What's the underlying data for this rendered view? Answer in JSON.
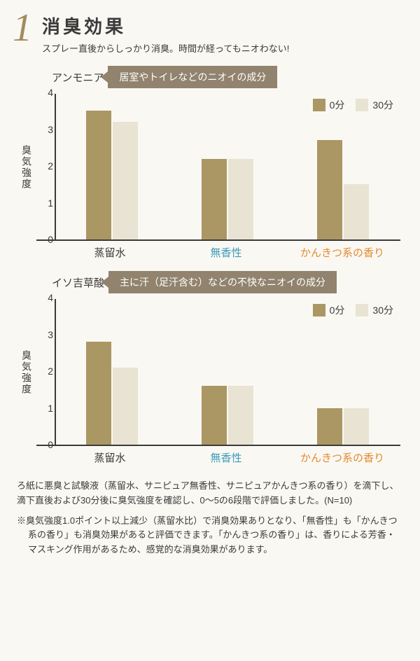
{
  "header": {
    "number": "1",
    "number_color": "#a48b5c",
    "title": "消臭効果",
    "subtitle": "スプレー直後からしっかり消臭。時間が経ってもニオわない!"
  },
  "colors": {
    "bar_primary": "#ab9764",
    "bar_secondary": "#e9e3d4",
    "caption_bg": "#91836d",
    "text": "#3a3a3a",
    "cat2": "#3b9bba",
    "cat3": "#e58a2f"
  },
  "legend": {
    "item1": "0分",
    "item2": "30分"
  },
  "chart1": {
    "substance": "アンモニア",
    "caption": "居室やトイレなどのニオイの成分",
    "ylabel": "臭気強度",
    "ymax": 4,
    "yticks": [
      0,
      1,
      2,
      3,
      4
    ],
    "categories": [
      {
        "label": "蒸留水",
        "color": "#3a3a3a",
        "v0": 3.5,
        "v30": 3.2
      },
      {
        "label": "無香性",
        "color": "#3b9bba",
        "v0": 2.2,
        "v30": 2.2
      },
      {
        "label": "かんきつ系の香り",
        "color": "#e58a2f",
        "v0": 2.7,
        "v30": 1.5
      }
    ]
  },
  "chart2": {
    "substance": "イソ吉草酸",
    "caption": "主に汗（足汗含む）などの不快なニオイの成分",
    "ylabel": "臭気強度",
    "ymax": 4,
    "yticks": [
      0,
      1,
      2,
      3,
      4
    ],
    "categories": [
      {
        "label": "蒸留水",
        "color": "#3a3a3a",
        "v0": 2.8,
        "v30": 2.1
      },
      {
        "label": "無香性",
        "color": "#3b9bba",
        "v0": 1.6,
        "v30": 1.6
      },
      {
        "label": "かんきつ系の香り",
        "color": "#e58a2f",
        "v0": 1.0,
        "v30": 1.0
      }
    ]
  },
  "description": "ろ紙に悪臭と試験液（蒸留水、サニピュア無香性、サニピュアかんきつ系の香り）を滴下し、滴下直後および30分後に臭気強度を確認し、0～5の6段階で評価しました。(N=10)",
  "note": "※臭気強度1.0ポイント以上減少（蒸留水比）で消臭効果ありとなり、「無香性」も「かんきつ系の香り」も消臭効果があると評価できます。「かんきつ系の香り」は、香りによる芳香・マスキング作用があるため、感覚的な消臭効果があります。"
}
